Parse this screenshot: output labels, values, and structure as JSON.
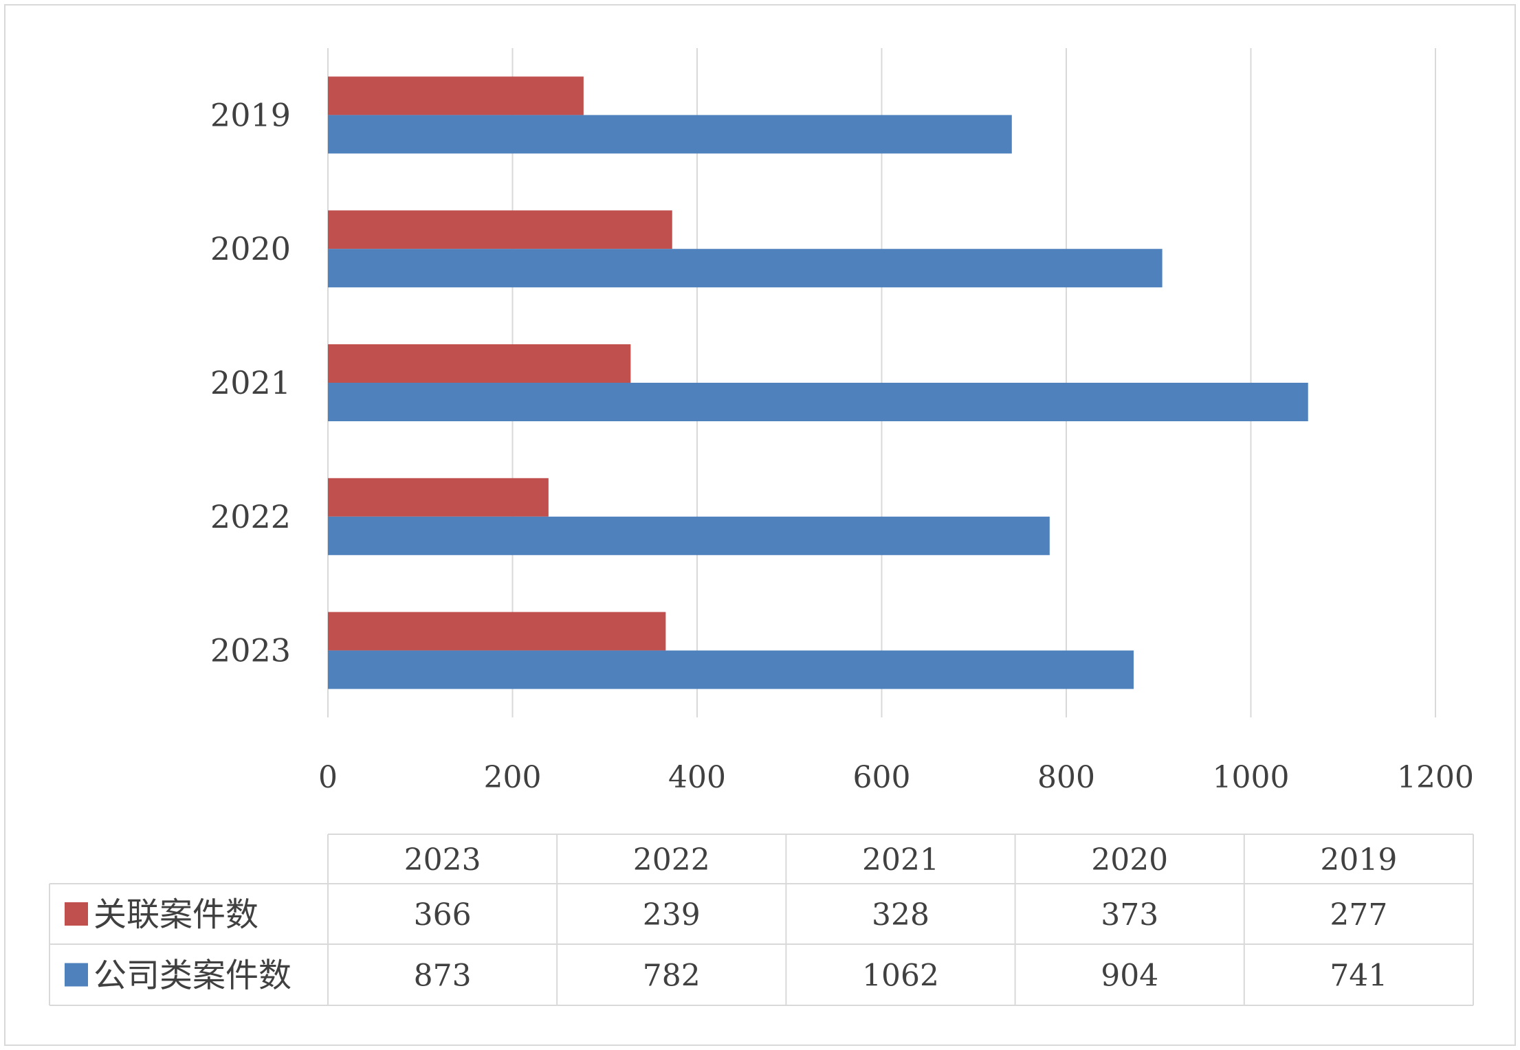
{
  "chart_data": {
    "type": "bar",
    "orientation": "horizontal",
    "categories": [
      "2019",
      "2020",
      "2021",
      "2022",
      "2023"
    ],
    "table_columns": [
      "2023",
      "2022",
      "2021",
      "2020",
      "2019"
    ],
    "series": [
      {
        "name": "关联案件数",
        "color": "#c0504d",
        "values": {
          "2023": 366,
          "2022": 239,
          "2021": 328,
          "2020": 373,
          "2019": 277
        }
      },
      {
        "name": "公司类案件数",
        "color": "#4f81bd",
        "values": {
          "2023": 873,
          "2022": 782,
          "2021": 1062,
          "2020": 904,
          "2019": 741
        }
      }
    ],
    "xlim": [
      0,
      1200
    ],
    "xticks": [
      0,
      200,
      400,
      600,
      800,
      1000,
      1200
    ],
    "grid": true,
    "legend": "data-table-left",
    "title": "",
    "xlabel": "",
    "ylabel": ""
  }
}
